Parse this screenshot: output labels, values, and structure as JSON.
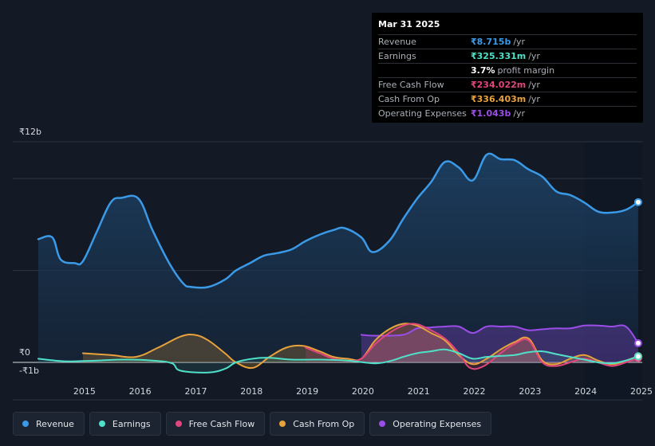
{
  "tooltip": {
    "date": "Mar 31 2025",
    "rows": [
      {
        "label": "Revenue",
        "value": "₹8.715b",
        "unit": "/yr",
        "color": "#3b9ae8"
      },
      {
        "label": "Earnings",
        "value": "₹325.331m",
        "unit": "/yr",
        "color": "#4fe0c8"
      },
      {
        "label": "",
        "value": "3.7%",
        "unit": "profit margin",
        "color": "#ffffff"
      },
      {
        "label": "Free Cash Flow",
        "value": "₹234.022m",
        "unit": "/yr",
        "color": "#e0457b"
      },
      {
        "label": "Cash From Op",
        "value": "₹336.403m",
        "unit": "/yr",
        "color": "#e8a23b"
      },
      {
        "label": "Operating Expenses",
        "value": "₹1.043b",
        "unit": "/yr",
        "color": "#9b4de8"
      }
    ]
  },
  "legend": [
    {
      "label": "Revenue",
      "color": "#3b9ae8"
    },
    {
      "label": "Earnings",
      "color": "#4fe0c8"
    },
    {
      "label": "Free Cash Flow",
      "color": "#e0457b"
    },
    {
      "label": "Cash From Op",
      "color": "#e8a23b"
    },
    {
      "label": "Operating Expenses",
      "color": "#9b4de8"
    }
  ],
  "chart_data": {
    "type": "area",
    "title": "",
    "y_unit": "₹ billions",
    "ylim": [
      -1,
      12
    ],
    "y_tick_labels": [
      {
        "value": 12,
        "label": "₹12b"
      },
      {
        "value": 0,
        "label": "₹0"
      },
      {
        "value": -1,
        "label": "-₹1b"
      }
    ],
    "x_ticks": [
      2015,
      2016,
      2017,
      2018,
      2019,
      2020,
      2021,
      2022,
      2023,
      2024,
      2025
    ],
    "xlim": [
      2014.45,
      2025.25
    ],
    "forecast_start": 2024.25,
    "series": [
      {
        "name": "Revenue",
        "color": "#3b9ae8",
        "points": [
          [
            2014.45,
            6.7
          ],
          [
            2014.7,
            6.8
          ],
          [
            2014.85,
            5.6
          ],
          [
            2015.1,
            5.4
          ],
          [
            2015.25,
            5.5
          ],
          [
            2015.5,
            7.1
          ],
          [
            2015.75,
            8.7
          ],
          [
            2015.95,
            8.95
          ],
          [
            2016.25,
            8.9
          ],
          [
            2016.5,
            7.2
          ],
          [
            2016.8,
            5.4
          ],
          [
            2017.05,
            4.3
          ],
          [
            2017.2,
            4.1
          ],
          [
            2017.5,
            4.1
          ],
          [
            2017.8,
            4.5
          ],
          [
            2018.0,
            5.0
          ],
          [
            2018.25,
            5.4
          ],
          [
            2018.5,
            5.8
          ],
          [
            2018.75,
            5.95
          ],
          [
            2019.0,
            6.15
          ],
          [
            2019.25,
            6.6
          ],
          [
            2019.5,
            6.95
          ],
          [
            2019.75,
            7.2
          ],
          [
            2019.95,
            7.3
          ],
          [
            2020.25,
            6.8
          ],
          [
            2020.45,
            6.0
          ],
          [
            2020.75,
            6.6
          ],
          [
            2021.0,
            7.8
          ],
          [
            2021.25,
            8.9
          ],
          [
            2021.5,
            9.8
          ],
          [
            2021.75,
            10.9
          ],
          [
            2022.0,
            10.6
          ],
          [
            2022.25,
            9.9
          ],
          [
            2022.5,
            11.3
          ],
          [
            2022.75,
            11.05
          ],
          [
            2023.0,
            11.0
          ],
          [
            2023.25,
            10.5
          ],
          [
            2023.5,
            10.1
          ],
          [
            2023.75,
            9.3
          ],
          [
            2024.0,
            9.1
          ],
          [
            2024.25,
            8.7
          ],
          [
            2024.5,
            8.2
          ],
          [
            2024.75,
            8.15
          ],
          [
            2025.0,
            8.3
          ],
          [
            2025.22,
            8.715
          ]
        ]
      },
      {
        "name": "Earnings",
        "color": "#4fe0c8",
        "points": [
          [
            2014.45,
            0.2
          ],
          [
            2014.75,
            0.1
          ],
          [
            2015.0,
            0.05
          ],
          [
            2015.5,
            0.1
          ],
          [
            2016.0,
            0.15
          ],
          [
            2016.5,
            0.1
          ],
          [
            2016.85,
            -0.05
          ],
          [
            2017.0,
            -0.45
          ],
          [
            2017.5,
            -0.55
          ],
          [
            2017.8,
            -0.35
          ],
          [
            2018.0,
            0.0
          ],
          [
            2018.3,
            0.2
          ],
          [
            2018.6,
            0.25
          ],
          [
            2019.0,
            0.15
          ],
          [
            2019.5,
            0.15
          ],
          [
            2020.0,
            0.1
          ],
          [
            2020.5,
            -0.05
          ],
          [
            2020.8,
            0.1
          ],
          [
            2021.0,
            0.3
          ],
          [
            2021.25,
            0.5
          ],
          [
            2021.5,
            0.6
          ],
          [
            2021.75,
            0.7
          ],
          [
            2022.0,
            0.5
          ],
          [
            2022.25,
            0.2
          ],
          [
            2022.5,
            0.3
          ],
          [
            2022.75,
            0.35
          ],
          [
            2023.0,
            0.4
          ],
          [
            2023.25,
            0.55
          ],
          [
            2023.5,
            0.6
          ],
          [
            2023.75,
            0.45
          ],
          [
            2024.0,
            0.3
          ],
          [
            2024.25,
            0.15
          ],
          [
            2024.5,
            0.0
          ],
          [
            2024.75,
            -0.05
          ],
          [
            2025.0,
            0.1
          ],
          [
            2025.22,
            0.325
          ]
        ]
      },
      {
        "name": "Free Cash Flow",
        "color": "#e0457b",
        "points": [
          [
            2019.25,
            0.8
          ],
          [
            2019.5,
            0.5
          ],
          [
            2019.75,
            0.2
          ],
          [
            2020.0,
            0.1
          ],
          [
            2020.25,
            0.2
          ],
          [
            2020.5,
            1.0
          ],
          [
            2020.75,
            1.6
          ],
          [
            2021.0,
            2.0
          ],
          [
            2021.2,
            2.1
          ],
          [
            2021.4,
            1.9
          ],
          [
            2021.75,
            1.3
          ],
          [
            2022.0,
            0.5
          ],
          [
            2022.2,
            -0.3
          ],
          [
            2022.45,
            -0.2
          ],
          [
            2022.75,
            0.5
          ],
          [
            2023.0,
            1.0
          ],
          [
            2023.25,
            1.2
          ],
          [
            2023.5,
            0.0
          ],
          [
            2023.75,
            -0.2
          ],
          [
            2024.0,
            0.0
          ],
          [
            2024.25,
            0.2
          ],
          [
            2024.5,
            0.0
          ],
          [
            2024.75,
            -0.2
          ],
          [
            2025.0,
            0.0
          ],
          [
            2025.22,
            0.234
          ]
        ]
      },
      {
        "name": "Cash From Op",
        "color": "#e8a23b",
        "points": [
          [
            2015.25,
            0.5
          ],
          [
            2015.75,
            0.4
          ],
          [
            2016.2,
            0.3
          ],
          [
            2016.6,
            0.8
          ],
          [
            2017.0,
            1.4
          ],
          [
            2017.25,
            1.5
          ],
          [
            2017.5,
            1.2
          ],
          [
            2017.8,
            0.5
          ],
          [
            2018.0,
            0.0
          ],
          [
            2018.3,
            -0.3
          ],
          [
            2018.6,
            0.3
          ],
          [
            2018.9,
            0.8
          ],
          [
            2019.2,
            0.9
          ],
          [
            2019.5,
            0.6
          ],
          [
            2019.75,
            0.3
          ],
          [
            2020.0,
            0.2
          ],
          [
            2020.25,
            0.2
          ],
          [
            2020.5,
            1.2
          ],
          [
            2020.75,
            1.8
          ],
          [
            2021.0,
            2.1
          ],
          [
            2021.25,
            2.0
          ],
          [
            2021.5,
            1.6
          ],
          [
            2021.75,
            1.2
          ],
          [
            2022.0,
            0.4
          ],
          [
            2022.25,
            -0.1
          ],
          [
            2022.5,
            0.2
          ],
          [
            2022.75,
            0.7
          ],
          [
            2023.0,
            1.1
          ],
          [
            2023.25,
            1.3
          ],
          [
            2023.5,
            0.1
          ],
          [
            2023.75,
            -0.1
          ],
          [
            2024.0,
            0.2
          ],
          [
            2024.25,
            0.4
          ],
          [
            2024.5,
            0.1
          ],
          [
            2024.75,
            -0.1
          ],
          [
            2025.0,
            0.1
          ],
          [
            2025.22,
            0.336
          ]
        ]
      },
      {
        "name": "Operating Expenses",
        "color": "#9b4de8",
        "points": [
          [
            2020.25,
            1.5
          ],
          [
            2020.5,
            1.45
          ],
          [
            2021.0,
            1.5
          ],
          [
            2021.25,
            1.85
          ],
          [
            2021.5,
            1.9
          ],
          [
            2021.75,
            1.95
          ],
          [
            2022.0,
            1.95
          ],
          [
            2022.25,
            1.6
          ],
          [
            2022.5,
            1.95
          ],
          [
            2022.75,
            1.95
          ],
          [
            2023.0,
            1.95
          ],
          [
            2023.25,
            1.75
          ],
          [
            2023.5,
            1.8
          ],
          [
            2023.75,
            1.85
          ],
          [
            2024.0,
            1.85
          ],
          [
            2024.25,
            2.0
          ],
          [
            2024.5,
            2.0
          ],
          [
            2024.75,
            1.95
          ],
          [
            2025.0,
            1.95
          ],
          [
            2025.22,
            1.043
          ]
        ]
      }
    ]
  }
}
